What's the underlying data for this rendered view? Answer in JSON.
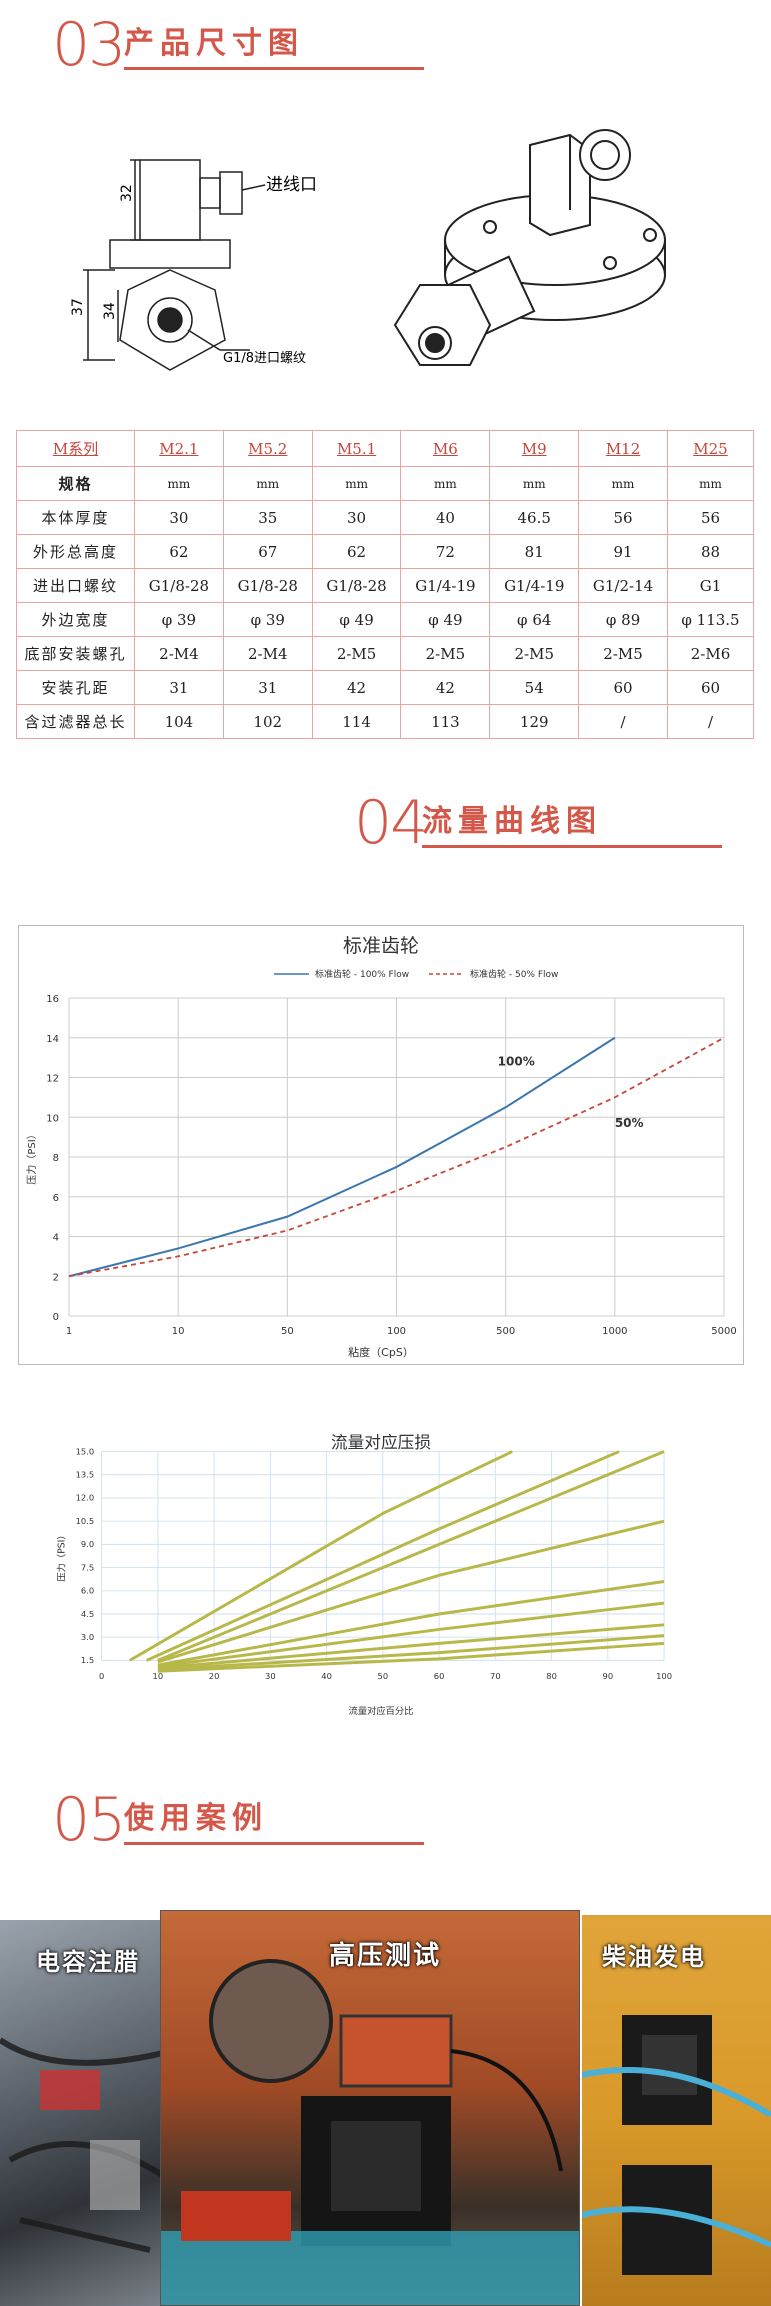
{
  "section3": {
    "num": "03",
    "title": "产品尺寸图"
  },
  "drawing": {
    "dim_top": "32",
    "dim_side": "37",
    "dim_hex": "34",
    "inlet_label": "进线口",
    "thread_label": "G1/8进口螺纹"
  },
  "spec_table": {
    "headers": [
      "M系列",
      "M2.1",
      "M5.2",
      "M5.1",
      "M6",
      "M9",
      "M12",
      "M25"
    ],
    "rows": [
      {
        "label": "规格",
        "values": [
          "mm",
          "mm",
          "mm",
          "mm",
          "mm",
          "mm",
          "mm"
        ]
      },
      {
        "label": "本体厚度",
        "values": [
          "30",
          "35",
          "30",
          "40",
          "46.5",
          "56",
          "56"
        ]
      },
      {
        "label": "外形总高度",
        "values": [
          "62",
          "67",
          "62",
          "72",
          "81",
          "91",
          "88"
        ]
      },
      {
        "label": "进出口螺纹",
        "values": [
          "G1/8-28",
          "G1/8-28",
          "G1/8-28",
          "G1/4-19",
          "G1/4-19",
          "G1/2-14",
          "G1"
        ]
      },
      {
        "label": "外边宽度",
        "values": [
          "φ 39",
          "φ 39",
          "φ 49",
          "φ 49",
          "φ 64",
          "φ 89",
          "φ 113.5"
        ]
      },
      {
        "label": "底部安装螺孔",
        "values": [
          "2-M4",
          "2-M4",
          "2-M5",
          "2-M5",
          "2-M5",
          "2-M5",
          "2-M6"
        ]
      },
      {
        "label": "安装孔距",
        "values": [
          "31",
          "31",
          "42",
          "42",
          "54",
          "60",
          "60"
        ]
      },
      {
        "label": "含过滤器总长",
        "values": [
          "104",
          "102",
          "114",
          "113",
          "129",
          "/",
          "/"
        ]
      }
    ]
  },
  "section4": {
    "num": "04",
    "title": "流量曲线图"
  },
  "chart_data": [
    {
      "type": "line",
      "title": "标准齿轮",
      "xlabel": "粘度（CpS）",
      "ylabel": "压力（PSI）",
      "x_ticks": [
        "1",
        "10",
        "50",
        "100",
        "500",
        "1000",
        "5000"
      ],
      "ylim": [
        0,
        16
      ],
      "y_ticks": [
        "0",
        "2",
        "4",
        "6",
        "8",
        "10",
        "12",
        "14",
        "16"
      ],
      "grid": true,
      "legend": "top",
      "series": [
        {
          "name": "标准齿轮 - 100% Flow",
          "label": "100%",
          "color": "#3a76b0",
          "x": [
            "1",
            "10",
            "50",
            "100",
            "500",
            "1000"
          ],
          "values": [
            2,
            3.4,
            5,
            7.5,
            10.5,
            14
          ]
        },
        {
          "name": "标准齿轮 - 50% Flow",
          "label": "50%",
          "color": "#c8453a",
          "x": [
            "1",
            "10",
            "50",
            "100",
            "500",
            "1000",
            "5000"
          ],
          "values": [
            2,
            3,
            4.3,
            6.3,
            8.5,
            11,
            14
          ]
        }
      ]
    },
    {
      "type": "line",
      "title": "流量对应压损",
      "xlabel": "流量对应百分比",
      "ylabel": "压力（PSI）",
      "xlim": [
        0,
        100
      ],
      "x_ticks": [
        "0",
        "10",
        "20",
        "30",
        "40",
        "50",
        "60",
        "70",
        "80",
        "90",
        "100"
      ],
      "y_ticks": [
        "1.5",
        "3.0",
        "4.5",
        "6.0",
        "7.5",
        "9.0",
        "10.5",
        "12.0",
        "13.5",
        "15.0"
      ],
      "grid": true,
      "series": [
        {
          "name": "",
          "values": [
            [
              5,
              1.5
            ],
            [
              50,
              11
            ],
            [
              73,
              15
            ]
          ]
        },
        {
          "name": "",
          "values": [
            [
              8,
              1.5
            ],
            [
              60,
              10
            ],
            [
              92,
              15
            ]
          ]
        },
        {
          "name": "",
          "values": [
            [
              10,
              1.5
            ],
            [
              70,
              10.5
            ],
            [
              100,
              15
            ]
          ]
        },
        {
          "name": "",
          "values": [
            [
              10,
              1.4
            ],
            [
              60,
              7
            ],
            [
              100,
              10.5
            ]
          ]
        },
        {
          "name": "",
          "values": [
            [
              10,
              1.2
            ],
            [
              60,
              4.5
            ],
            [
              100,
              6.6
            ]
          ]
        },
        {
          "name": "",
          "values": [
            [
              10,
              1.1
            ],
            [
              60,
              3.5
            ],
            [
              100,
              5.2
            ]
          ]
        },
        {
          "name": "",
          "values": [
            [
              10,
              1.0
            ],
            [
              60,
              2.6
            ],
            [
              100,
              3.8
            ]
          ]
        },
        {
          "name": "",
          "values": [
            [
              10,
              0.9
            ],
            [
              60,
              2.0
            ],
            [
              100,
              3.1
            ]
          ]
        },
        {
          "name": "",
          "values": [
            [
              10,
              0.8
            ],
            [
              60,
              1.6
            ],
            [
              100,
              2.6
            ]
          ]
        }
      ]
    }
  ],
  "section5": {
    "num": "05",
    "title": "使用案例"
  },
  "cases": [
    "电容注腊",
    "高压测试",
    "柴油发电"
  ],
  "colors": {
    "accent": "#d4584a",
    "olive": "#b8b84a"
  }
}
